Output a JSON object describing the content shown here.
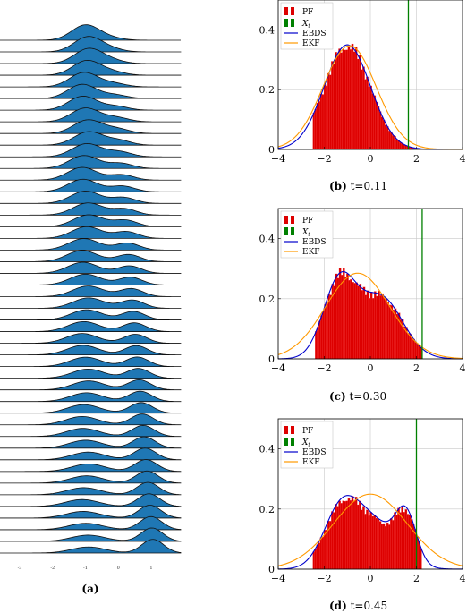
{
  "chart_data": [
    {
      "type": "area",
      "caption": "(a)",
      "ridge_count": 45,
      "fill_color": "#1f77b4",
      "xticks": [
        "-3",
        "-2",
        "-1",
        "0",
        "1"
      ],
      "xlim": [
        -3.6,
        1.9
      ],
      "peaks_top_to_bottom_note": null
    },
    {
      "type": "bar",
      "caption_label": "(b)",
      "caption_text": "t=0.11",
      "xlim": [
        -4,
        4
      ],
      "ylim": [
        0,
        0.5
      ],
      "xticks": [
        -4,
        -2,
        0,
        2,
        4
      ],
      "yticks": [
        0,
        0.2,
        0.4
      ],
      "grid": true,
      "legend_position": "top-left",
      "legend": [
        "PF",
        "X_t",
        "EBDS",
        "EKF"
      ],
      "observation_x": 1.65,
      "hist_mixture": [
        [
          -1.0,
          1.0,
          1.0
        ]
      ],
      "hist_peak": 0.345,
      "hist_range": [
        -2.5,
        1.9
      ],
      "ebds_peak": 0.35,
      "ekf": {
        "mean": -0.9,
        "sd": 1.15
      },
      "colors": {
        "PF": "#dd0000",
        "X_t": "#008000",
        "EBDS": "#0000cc",
        "EKF": "#ff9900"
      }
    },
    {
      "type": "bar",
      "caption_label": "(c)",
      "caption_text": "t=0.30",
      "xlim": [
        -4,
        4
      ],
      "ylim": [
        0,
        0.5
      ],
      "xticks": [
        -4,
        -2,
        0,
        2,
        4
      ],
      "yticks": [
        0,
        0.2,
        0.4
      ],
      "grid": true,
      "legend_position": "top-left",
      "legend": [
        "PF",
        "X_t",
        "EBDS",
        "EKF"
      ],
      "observation_x": 2.25,
      "hist_mixture": [
        [
          -1.35,
          0.7,
          0.55
        ],
        [
          0.45,
          0.95,
          0.45
        ]
      ],
      "hist_peak": 0.285,
      "hist_range": [
        -2.4,
        2.2
      ],
      "ebds_peak": 0.29,
      "ekf": {
        "mean": -0.55,
        "sd": 1.4
      },
      "colors": {
        "PF": "#dd0000",
        "X_t": "#008000",
        "EBDS": "#0000cc",
        "EKF": "#ff9900"
      }
    },
    {
      "type": "bar",
      "caption_label": "(d)",
      "caption_text": "t=0.45",
      "xlim": [
        -4,
        4
      ],
      "ylim": [
        0,
        0.5
      ],
      "xticks": [
        -4,
        -2,
        0,
        2,
        4
      ],
      "yticks": [
        0,
        0.2,
        0.4
      ],
      "grid": true,
      "legend_position": "top-left",
      "legend": [
        "PF",
        "X_t",
        "EBDS",
        "EKF"
      ],
      "observation_x": 2.0,
      "hist_mixture": [
        [
          -1.3,
          0.75,
          0.4
        ],
        [
          0.1,
          1.0,
          0.35
        ],
        [
          1.55,
          0.45,
          0.35
        ]
      ],
      "hist_peak": 0.235,
      "hist_range": [
        -2.5,
        2.15
      ],
      "ebds_peak": 0.245,
      "ekf": {
        "mean": 0.0,
        "sd": 1.6
      },
      "colors": {
        "PF": "#dd0000",
        "X_t": "#008000",
        "EBDS": "#0000cc",
        "EKF": "#ff9900"
      }
    }
  ],
  "legend_labels": {
    "pf": "PF",
    "xt": "X",
    "xt_sub": "t",
    "ebds": "EBDS",
    "ekf": "EKF"
  },
  "captions": {
    "a": "(a)",
    "b_label": "(b)",
    "b_text": " t=0.11",
    "c_label": "(c)",
    "c_text": " t=0.30",
    "d_label": "(d)",
    "d_text": " t=0.45"
  }
}
